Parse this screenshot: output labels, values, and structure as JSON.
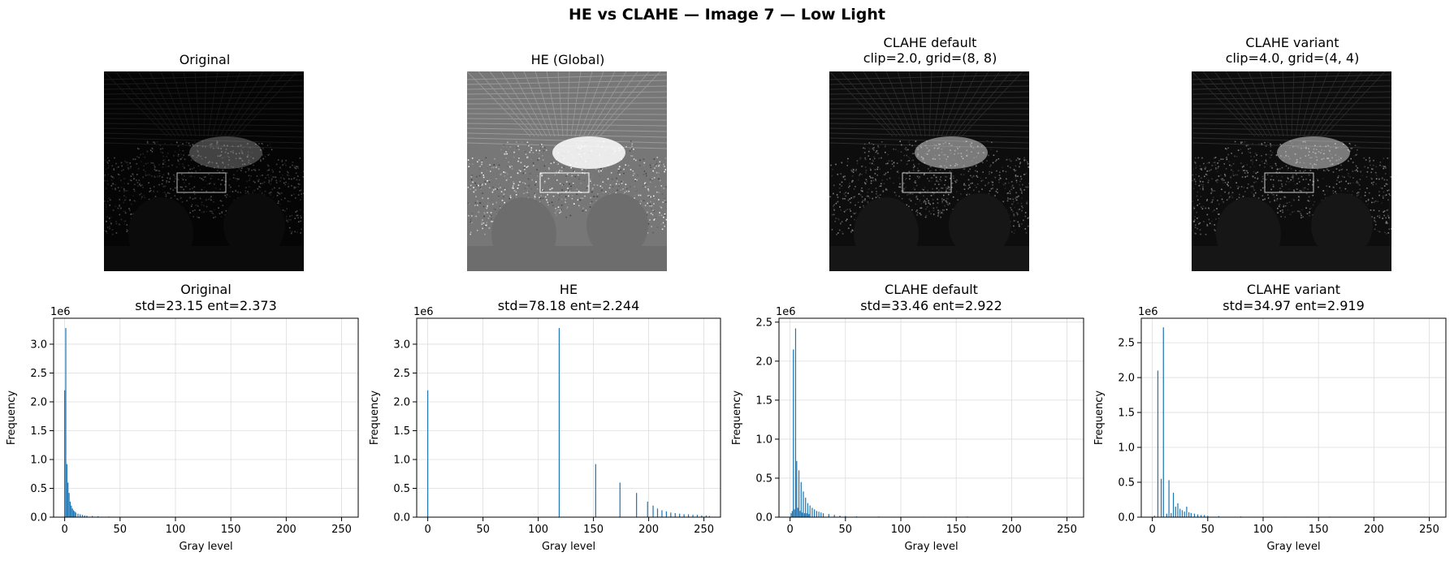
{
  "suptitle": "HE vs CLAHE — Image 7 — Low Light",
  "images": [
    {
      "title": "Original",
      "style": "dark"
    },
    {
      "title": "HE (Global)",
      "style": "bright"
    },
    {
      "title": "CLAHE default\nclip=2.0, grid=(8, 8)",
      "style": "medium"
    },
    {
      "title": "CLAHE variant\nclip=4.0, grid=(4, 4)",
      "style": "medium"
    }
  ],
  "chart_data": [
    {
      "type": "bar",
      "title": "Original\nstd=23.15  ent=2.373",
      "xlabel": "Gray level",
      "ylabel": "Frequency",
      "scale_label": "1e6",
      "xlim": [
        -10,
        265
      ],
      "ylim": [
        0,
        3.45
      ],
      "xticks": [
        0,
        50,
        100,
        150,
        200,
        250
      ],
      "yticks": [
        0.0,
        0.5,
        1.0,
        1.5,
        2.0,
        2.5,
        3.0
      ],
      "grid": true,
      "color": "#1f77b4",
      "bins": [
        [
          0,
          2.2
        ],
        [
          1,
          3.28
        ],
        [
          2,
          0.92
        ],
        [
          3,
          0.6
        ],
        [
          4,
          0.42
        ],
        [
          5,
          0.27
        ],
        [
          6,
          0.2
        ],
        [
          7,
          0.15
        ],
        [
          8,
          0.12
        ],
        [
          9,
          0.1
        ],
        [
          10,
          0.08
        ],
        [
          12,
          0.06
        ],
        [
          14,
          0.05
        ],
        [
          16,
          0.04
        ],
        [
          18,
          0.03
        ],
        [
          20,
          0.025
        ],
        [
          25,
          0.02
        ],
        [
          30,
          0.015
        ],
        [
          40,
          0.01
        ],
        [
          50,
          0.008
        ],
        [
          60,
          0.006
        ],
        [
          70,
          0.005
        ],
        [
          80,
          0.005
        ],
        [
          90,
          0.005
        ],
        [
          100,
          0.006
        ]
      ]
    },
    {
      "type": "bar",
      "title": "HE\nstd=78.18  ent=2.244",
      "xlabel": "Gray level",
      "ylabel": "Frequency",
      "scale_label": "1e6",
      "xlim": [
        -10,
        265
      ],
      "ylim": [
        0,
        3.45
      ],
      "xticks": [
        0,
        50,
        100,
        150,
        200,
        250
      ],
      "yticks": [
        0.0,
        0.5,
        1.0,
        1.5,
        2.0,
        2.5,
        3.0
      ],
      "grid": true,
      "color": "#1f77b4",
      "bins": [
        [
          0,
          2.2
        ],
        [
          119,
          3.28
        ],
        [
          152,
          0.92
        ],
        [
          174,
          0.6
        ],
        [
          189,
          0.42
        ],
        [
          199,
          0.27
        ],
        [
          204,
          0.2
        ],
        [
          208,
          0.15
        ],
        [
          212,
          0.12
        ],
        [
          216,
          0.1
        ],
        [
          220,
          0.08
        ],
        [
          224,
          0.07
        ],
        [
          228,
          0.06
        ],
        [
          232,
          0.05
        ],
        [
          236,
          0.05
        ],
        [
          240,
          0.04
        ],
        [
          244,
          0.04
        ],
        [
          248,
          0.03
        ],
        [
          252,
          0.03
        ],
        [
          255,
          0.02
        ]
      ]
    },
    {
      "type": "bar",
      "title": "CLAHE default\nstd=33.46  ent=2.922",
      "xlabel": "Gray level",
      "ylabel": "Frequency",
      "scale_label": "1e6",
      "xlim": [
        -10,
        265
      ],
      "ylim": [
        0,
        2.55
      ],
      "xticks": [
        0,
        50,
        100,
        150,
        200,
        250
      ],
      "yticks": [
        0.0,
        0.5,
        1.0,
        1.5,
        2.0,
        2.5
      ],
      "grid": true,
      "color": "#1f77b4",
      "bins": [
        [
          1,
          0.05
        ],
        [
          2,
          0.08
        ],
        [
          3,
          2.15
        ],
        [
          4,
          0.1
        ],
        [
          5,
          2.42
        ],
        [
          6,
          0.72
        ],
        [
          7,
          0.12
        ],
        [
          8,
          0.6
        ],
        [
          9,
          0.08
        ],
        [
          10,
          0.45
        ],
        [
          11,
          0.06
        ],
        [
          12,
          0.33
        ],
        [
          13,
          0.05
        ],
        [
          14,
          0.25
        ],
        [
          15,
          0.05
        ],
        [
          16,
          0.18
        ],
        [
          17,
          0.04
        ],
        [
          18,
          0.15
        ],
        [
          20,
          0.12
        ],
        [
          22,
          0.1
        ],
        [
          24,
          0.08
        ],
        [
          26,
          0.07
        ],
        [
          28,
          0.06
        ],
        [
          30,
          0.05
        ],
        [
          35,
          0.04
        ],
        [
          40,
          0.03
        ],
        [
          45,
          0.02
        ],
        [
          50,
          0.015
        ],
        [
          60,
          0.01
        ],
        [
          80,
          0.008
        ],
        [
          100,
          0.007
        ],
        [
          120,
          0.006
        ],
        [
          140,
          0.006
        ],
        [
          160,
          0.008
        ],
        [
          170,
          0.005
        ]
      ]
    },
    {
      "type": "bar",
      "title": "CLAHE variant\nstd=34.97  ent=2.919",
      "xlabel": "Gray level",
      "ylabel": "Frequency",
      "scale_label": "1e6",
      "xlim": [
        -10,
        265
      ],
      "ylim": [
        0,
        2.85
      ],
      "xticks": [
        0,
        50,
        100,
        150,
        200,
        250
      ],
      "yticks": [
        0.0,
        0.5,
        1.0,
        1.5,
        2.0,
        2.5
      ],
      "grid": true,
      "color": "#1f77b4",
      "bins": [
        [
          2,
          0.02
        ],
        [
          5,
          2.1
        ],
        [
          8,
          0.55
        ],
        [
          10,
          2.72
        ],
        [
          13,
          0.05
        ],
        [
          15,
          0.53
        ],
        [
          17,
          0.06
        ],
        [
          19,
          0.35
        ],
        [
          21,
          0.15
        ],
        [
          23,
          0.2
        ],
        [
          25,
          0.12
        ],
        [
          27,
          0.1
        ],
        [
          29,
          0.08
        ],
        [
          31,
          0.15
        ],
        [
          33,
          0.07
        ],
        [
          35,
          0.06
        ],
        [
          38,
          0.05
        ],
        [
          41,
          0.04
        ],
        [
          44,
          0.03
        ],
        [
          47,
          0.03
        ],
        [
          50,
          0.02
        ],
        [
          60,
          0.015
        ],
        [
          80,
          0.01
        ],
        [
          100,
          0.008
        ],
        [
          120,
          0.007
        ],
        [
          140,
          0.007
        ],
        [
          160,
          0.008
        ],
        [
          172,
          0.005
        ]
      ]
    }
  ]
}
